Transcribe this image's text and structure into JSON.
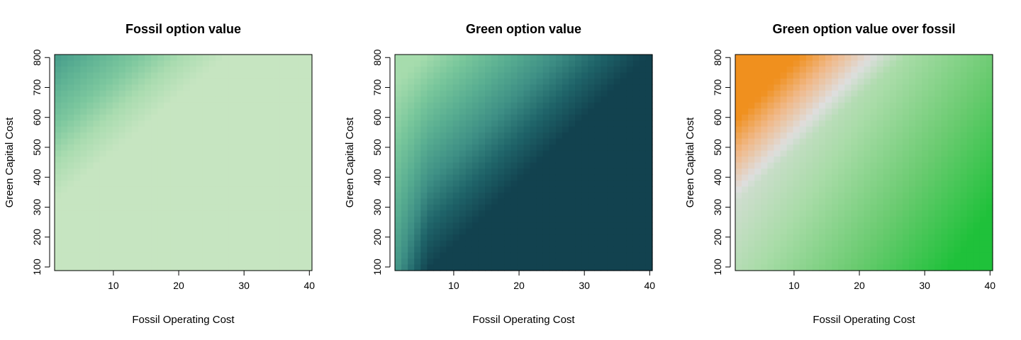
{
  "chart_data": [
    {
      "type": "heatmap",
      "title": "Fossil option value",
      "xlabel": "Fossil Operating Cost",
      "ylabel": "Green Capital Cost",
      "xlim": [
        1,
        40
      ],
      "ylim": [
        100,
        800
      ],
      "x_ticks": [
        10,
        20,
        30,
        40
      ],
      "x_tick_labels": [
        "10",
        "20",
        "30",
        "40"
      ],
      "y_ticks": [
        100,
        200,
        300,
        400,
        500,
        600,
        700,
        800
      ],
      "y_tick_labels": [
        "100",
        "200",
        "300",
        "400",
        "500",
        "600",
        "700",
        "800"
      ],
      "palette": [
        "#c6e5c1",
        "#aadcb0",
        "#7cc79e",
        "#5fb394",
        "#44998a"
      ],
      "surface": "max(0, y - 18.5*x - 300)",
      "value_range": [
        0,
        500
      ]
    },
    {
      "type": "heatmap",
      "title": "Green option value",
      "xlabel": "Fossil Operating Cost",
      "ylabel": "Green Capital Cost",
      "xlim": [
        1,
        40
      ],
      "ylim": [
        100,
        800
      ],
      "x_ticks": [
        10,
        20,
        30,
        40
      ],
      "x_tick_labels": [
        "10",
        "20",
        "30",
        "40"
      ],
      "y_ticks": [
        100,
        200,
        300,
        400,
        500,
        600,
        700,
        800
      ],
      "y_tick_labels": [
        "100",
        "200",
        "300",
        "400",
        "500",
        "600",
        "700",
        "800"
      ],
      "palette": [
        "#a6dcad",
        "#78c69b",
        "#58ad91",
        "#3e8f85",
        "#1f6469",
        "#12424f"
      ],
      "surface": "max(0, 16*x - 0.75*y + 100) with banded left edge",
      "value_range": [
        0,
        550
      ]
    },
    {
      "type": "heatmap",
      "title": "Green option value over fossil",
      "xlabel": "Fossil Operating Cost",
      "ylabel": "Green Capital Cost",
      "xlim": [
        1,
        40
      ],
      "ylim": [
        100,
        800
      ],
      "x_ticks": [
        10,
        20,
        30,
        40
      ],
      "x_tick_labels": [
        "10",
        "20",
        "30",
        "40"
      ],
      "y_ticks": [
        100,
        200,
        300,
        400,
        500,
        600,
        700,
        800
      ],
      "y_tick_labels": [
        "100",
        "200",
        "300",
        "400",
        "500",
        "600",
        "700",
        "800"
      ],
      "palette_negative": [
        "#dedede",
        "#f0b98a",
        "#f0901e"
      ],
      "palette_positive": [
        "#dedede",
        "#a9dca8",
        "#6acb70",
        "#1fc13a"
      ],
      "surface": "green minus fossil, diverging around zero",
      "value_range": [
        -350,
        500
      ]
    }
  ]
}
